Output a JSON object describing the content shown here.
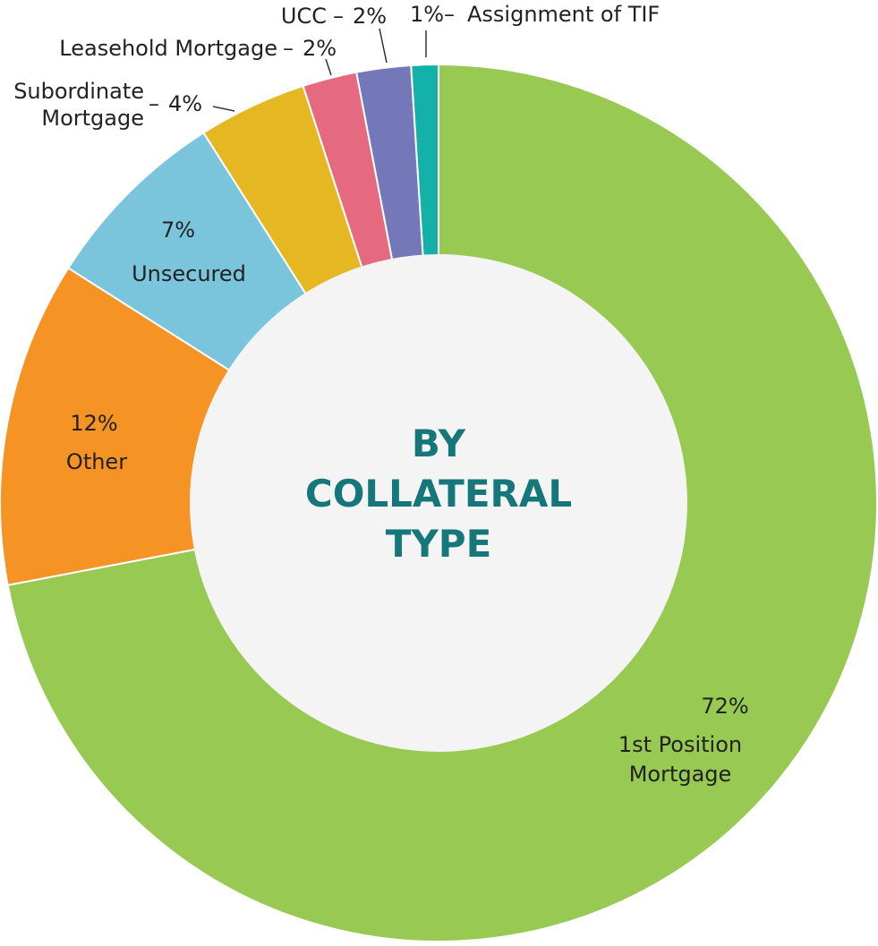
{
  "chart_data": {
    "type": "pie",
    "variant": "donut",
    "center_title": [
      "BY",
      "COLLATERAL",
      "TYPE"
    ],
    "center_title_color": "#16777a",
    "center_fill": "#f4f4f4",
    "slices": [
      {
        "name": "1st Position Mortgage",
        "percent_label": "72%",
        "value": 72,
        "color": "#97c953",
        "label_lines": [
          "1st Position",
          "Mortgage"
        ]
      },
      {
        "name": "Other",
        "percent_label": "12%",
        "value": 12,
        "color": "#f59324",
        "label_lines": [
          "Other"
        ]
      },
      {
        "name": "Unsecured",
        "percent_label": "7%",
        "value": 7,
        "color": "#7bc5dc",
        "label_lines": [
          "Unsecured"
        ]
      },
      {
        "name": "Subordinate Mortgage",
        "percent_label": "4%",
        "value": 4,
        "color": "#e5b823",
        "label_lines": [
          "Subordinate",
          "Mortgage"
        ]
      },
      {
        "name": "Leasehold Mortgage",
        "percent_label": "2%",
        "value": 2,
        "color": "#e56a80",
        "label_lines": [
          "Leasehold Mortgage"
        ]
      },
      {
        "name": "UCC",
        "percent_label": "2%",
        "value": 2,
        "color": "#7478b8",
        "label_lines": [
          "UCC"
        ]
      },
      {
        "name": "Assignment of TIF",
        "percent_label": "1%",
        "value": 1,
        "color": "#13b1a7",
        "label_lines": [
          "Assignment of TIF"
        ]
      }
    ],
    "start": "top",
    "direction": "clockwise"
  }
}
